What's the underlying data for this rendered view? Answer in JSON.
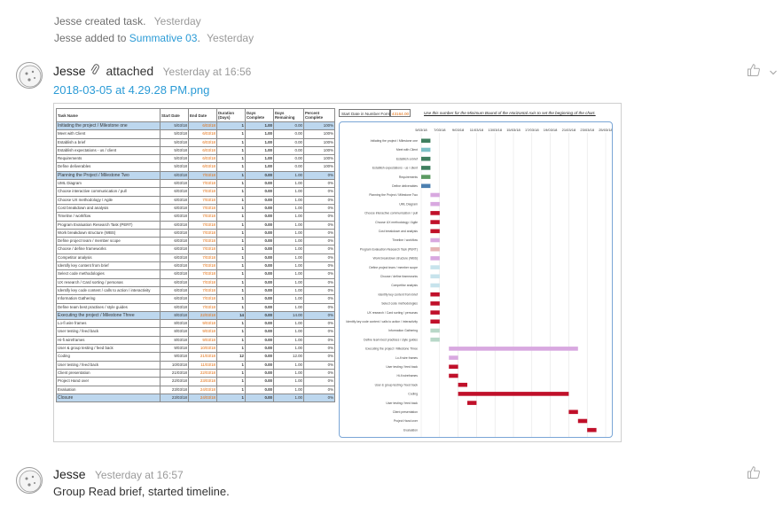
{
  "activity": {
    "created": {
      "actor": "Jesse",
      "action": "created task.",
      "time": "Yesterday"
    },
    "added": {
      "actor": "Jesse",
      "action": "added to",
      "project": "Summative 03",
      "time": "Yesterday"
    }
  },
  "comments": [
    {
      "author": "Jesse",
      "verb": "attached",
      "time": "Yesterday at 16:56",
      "attachment": "2018-03-05 at 4.29.28 PM.png"
    },
    {
      "author": "Jesse",
      "time": "Yesterday at 16:57",
      "text": "Group Read brief, started timeline."
    }
  ],
  "icons": {
    "avatar": "avatar-icon",
    "attach": "paperclip-icon",
    "like": "thumbs-up-icon",
    "menu": "chevron-down-icon"
  },
  "colors": {
    "link": "#2b9bd6",
    "milestone_row": "#bdd7ee",
    "date_orange": "#e26b0a",
    "gantt_border": "#7aa6d6"
  },
  "spreadsheet": {
    "headers": [
      "Task Name",
      "Start Date",
      "End Date",
      "Duration (Days)",
      "Days Complete",
      "Days Remaining",
      "Percent Complete"
    ],
    "rows": [
      [
        "Initiating the project / Milestone one",
        "5/03/18",
        "6/03/18",
        "1",
        "1.00",
        "0.00",
        "100%"
      ],
      [
        "Meet with Client",
        "5/03/18",
        "6/03/18",
        "1",
        "1.00",
        "0.00",
        "100%"
      ],
      [
        "Establish a brief",
        "5/03/18",
        "6/03/18",
        "1",
        "1.00",
        "0.00",
        "100%"
      ],
      [
        "Establish expectations - us / client",
        "5/03/18",
        "6/03/18",
        "1",
        "1.00",
        "0.00",
        "100%"
      ],
      [
        "Requirements",
        "5/03/18",
        "6/03/18",
        "1",
        "1.00",
        "0.00",
        "100%"
      ],
      [
        "Define deliverables",
        "5/03/18",
        "6/03/18",
        "1",
        "1.00",
        "0.00",
        "100%"
      ],
      [
        "Planning the Project / Milestone Two",
        "6/03/18",
        "7/03/18",
        "1",
        "0.00",
        "1.00",
        "0%"
      ],
      [
        "UML Diagram",
        "6/03/18",
        "7/03/18",
        "1",
        "0.00",
        "1.00",
        "0%"
      ],
      [
        "Choose interactive communication / pull",
        "6/03/18",
        "7/03/18",
        "1",
        "0.00",
        "1.00",
        "0%"
      ],
      [
        "Choose UX methodology / Agile",
        "6/03/18",
        "7/03/18",
        "1",
        "0.00",
        "1.00",
        "0%"
      ],
      [
        "Cost breakdown and analysis",
        "6/03/18",
        "7/03/18",
        "1",
        "0.00",
        "1.00",
        "0%"
      ],
      [
        "Timeline / workflow",
        "6/03/18",
        "7/03/18",
        "1",
        "0.00",
        "1.00",
        "0%"
      ],
      [
        "Program Evaluation Research Task (PERT)",
        "6/03/18",
        "7/03/18",
        "1",
        "0.00",
        "1.00",
        "0%"
      ],
      [
        "Work breakdown structure (WBS)",
        "6/03/18",
        "7/03/18",
        "1",
        "0.00",
        "1.00",
        "0%"
      ],
      [
        "Define project team / member scope",
        "6/03/18",
        "7/03/18",
        "1",
        "0.00",
        "1.00",
        "0%"
      ],
      [
        "Choose / define frameworks",
        "6/03/18",
        "7/03/18",
        "1",
        "0.00",
        "1.00",
        "0%"
      ],
      [
        "Competitor analysis",
        "6/03/18",
        "7/03/18",
        "1",
        "0.00",
        "1.00",
        "0%"
      ],
      [
        "Identify key content from brief",
        "6/03/18",
        "7/03/18",
        "1",
        "0.00",
        "1.00",
        "0%"
      ],
      [
        "Select code methodologies",
        "6/03/18",
        "7/03/18",
        "1",
        "0.00",
        "1.00",
        "0%"
      ],
      [
        "UX research / Card sorting / personas",
        "6/03/18",
        "7/03/18",
        "1",
        "0.00",
        "1.00",
        "0%"
      ],
      [
        "Identify key code content / calls to action / interactivity",
        "6/03/18",
        "7/03/18",
        "1",
        "0.00",
        "1.00",
        "0%"
      ],
      [
        "Information Gathering",
        "6/03/18",
        "7/03/18",
        "1",
        "0.00",
        "1.00",
        "0%"
      ],
      [
        "Define team best practises / style guides",
        "6/03/18",
        "7/03/18",
        "1",
        "0.00",
        "1.00",
        "0%"
      ],
      [
        "Executing the project / Milestone Three",
        "8/03/18",
        "22/03/18",
        "14",
        "0.00",
        "14.00",
        "0%"
      ],
      [
        "Lo-fi wire frames",
        "8/03/18",
        "9/03/18",
        "1",
        "0.00",
        "1.00",
        "0%"
      ],
      [
        "User testing / feed back",
        "8/03/18",
        "9/03/18",
        "1",
        "0.00",
        "1.00",
        "0%"
      ],
      [
        "Hi-fi wireframes",
        "8/03/18",
        "9/03/18",
        "1",
        "0.00",
        "1.00",
        "0%"
      ],
      [
        "User & group testing / feed back",
        "9/03/18",
        "10/03/18",
        "1",
        "0.00",
        "1.00",
        "0%"
      ],
      [
        "Coding",
        "9/03/18",
        "21/03/18",
        "12",
        "0.00",
        "12.00",
        "0%"
      ],
      [
        "User testing / feed back",
        "10/03/18",
        "11/03/18",
        "1",
        "0.00",
        "1.00",
        "0%"
      ],
      [
        "Client presentation",
        "21/03/18",
        "22/03/18",
        "1",
        "0.00",
        "1.00",
        "0%"
      ],
      [
        "Project Hand over",
        "22/03/18",
        "23/03/18",
        "1",
        "0.00",
        "1.00",
        "0%"
      ],
      [
        "Evaluation",
        "23/03/18",
        "24/03/18",
        "1",
        "0.00",
        "1.00",
        "0%"
      ],
      [
        "Closure",
        "23/03/18",
        "24/03/18",
        "1",
        "0.00",
        "1.00",
        "0%"
      ]
    ],
    "milestone_rows": [
      0,
      6,
      23,
      33
    ]
  },
  "chart_header": {
    "label": "Start Date in Number Form",
    "value": "43164.00",
    "note": "Use this number for the Minimum Bound of the Horizontal Axis to set the beginning of the chart."
  },
  "chart_data": {
    "type": "bar",
    "orientation": "horizontal-stacked-gantt",
    "x_ticks": [
      "5/03/18",
      "7/03/18",
      "9/03/18",
      "11/03/18",
      "13/03/18",
      "15/03/18",
      "17/03/18",
      "19/03/18",
      "21/03/18",
      "23/03/18",
      "25/03/18"
    ],
    "xlim": [
      "5/03/18",
      "25/03/18"
    ],
    "grid": true,
    "categories": [
      "Initiating the project / Milestone one",
      "Meet with Client",
      "Establish a brief",
      "Establish expectations - us / client",
      "Requirements",
      "Define deliverables",
      "Planning the Project / Milestone Two",
      "UML Diagram",
      "Choose interactive communication / pull",
      "Choose UX methodology / Agile",
      "Cost breakdown and analysis",
      "Timeline / workflow",
      "Program Evaluation Research Task (PERT)",
      "Work breakdown structure (WBS)",
      "Define project team / member scope",
      "Choose / define frameworks",
      "Competitor analysis",
      "Identify key content from brief",
      "Select code methodologies",
      "UX research / Card sorting / personas",
      "Identify key code content / calls to action / interactivity",
      "Information Gathering",
      "Define team best practises / style guides",
      "Executing the project / Milestone Three",
      "Lo-fi wire frames",
      "User testing / feed back",
      "Hi-fi wireframes",
      "User & group testing / feed back",
      "Coding",
      "User testing / feed back",
      "Client presentation",
      "Project Hand over",
      "Evaluation",
      "Closure"
    ],
    "start": [
      "5/03/18",
      "5/03/18",
      "5/03/18",
      "5/03/18",
      "5/03/18",
      "5/03/18",
      "6/03/18",
      "6/03/18",
      "6/03/18",
      "6/03/18",
      "6/03/18",
      "6/03/18",
      "6/03/18",
      "6/03/18",
      "6/03/18",
      "6/03/18",
      "6/03/18",
      "6/03/18",
      "6/03/18",
      "6/03/18",
      "6/03/18",
      "6/03/18",
      "6/03/18",
      "8/03/18",
      "8/03/18",
      "8/03/18",
      "8/03/18",
      "9/03/18",
      "9/03/18",
      "10/03/18",
      "21/03/18",
      "22/03/18",
      "23/03/18",
      "23/03/18"
    ],
    "duration_days": [
      1,
      1,
      1,
      1,
      1,
      1,
      1,
      1,
      1,
      1,
      1,
      1,
      1,
      1,
      1,
      1,
      1,
      1,
      1,
      1,
      1,
      1,
      1,
      14,
      1,
      1,
      1,
      1,
      12,
      1,
      1,
      1,
      1,
      1
    ],
    "bar_colors": [
      "#3f7f5f",
      "#7cc0c6",
      "#3f7f5f",
      "#3f7f5f",
      "#5c9a62",
      "#4c7fb0",
      "#d8a8e0",
      "#d8a8e0",
      "#c0102a",
      "#c0102a",
      "#c0102a",
      "#d8a8e0",
      "#e6b4b4",
      "#d8a8e0",
      "#c7e3ec",
      "#c7e3ec",
      "#c7e3ec",
      "#c0102a",
      "#c0102a",
      "#c0102a",
      "#c0102a",
      "#b8d8c8",
      "#b8d8c8",
      "#d8a8e0",
      "#d8a8e0",
      "#c0102a",
      "#c0102a",
      "#c0102a",
      "#c0102a",
      "#c0102a",
      "#c0102a",
      "#c0102a",
      "#c0102a",
      "#c0102a"
    ]
  }
}
